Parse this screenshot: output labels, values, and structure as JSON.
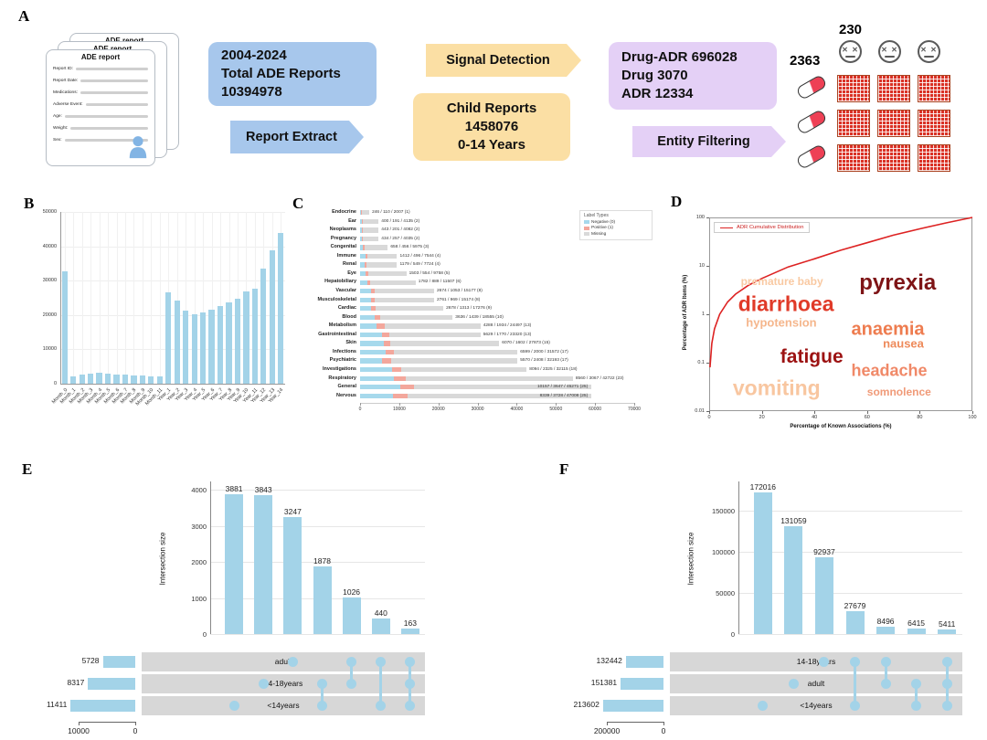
{
  "labels": {
    "A": "A",
    "B": "B",
    "C": "C",
    "D": "D",
    "E": "E",
    "F": "F"
  },
  "colors": {
    "bar_blue": "#a3d3e8",
    "neg_blue": "#a6d9ec",
    "pos_salmon": "#f3a79c",
    "missing_gray": "#d9d9d9",
    "box_blue": "#a7c7ec",
    "box_orange": "#fbdfa4",
    "box_purple": "#e4d0f6",
    "curve_red": "#dd2222",
    "matrix_red": "#da3125",
    "pill_red": "#ee4055",
    "band_gray": "#d7d7d7",
    "upset_blue": "#a3d3e8"
  },
  "flow": {
    "ade_title": "ADE report",
    "fields": [
      "Report ID:",
      "Report Date:",
      "Medications:",
      "Adverse Event:",
      "Age:",
      "Weight:",
      "Sex:"
    ],
    "total_box": [
      "2004-2024",
      "Total ADE Reports",
      "10394978"
    ],
    "report_extract": "Report Extract",
    "signal_detection": "Signal Detection",
    "child_box": [
      "Child Reports",
      "1458076",
      "0-14 Years"
    ],
    "entity_box": [
      "Drug-ADR 696028",
      "Drug 3070",
      "ADR 12334"
    ],
    "entity_filtering": "Entity Filtering",
    "drug_count": "2363",
    "adr_count": "230"
  },
  "chart_data": [
    {
      "id": "B",
      "type": "bar",
      "categories": [
        "Month_0",
        "Month_1",
        "Month_2",
        "Month_3",
        "Month_4",
        "Month_5",
        "Month_6",
        "Month_7",
        "Month_8",
        "Month_9",
        "Month_10",
        "Month_11",
        "Year_1",
        "Year_2",
        "Year_3",
        "Year_4",
        "Year_5",
        "Year_6",
        "Year_7",
        "Year_8",
        "Year_9",
        "Year_10",
        "Year_11",
        "Year_12",
        "Year_13",
        "Year_14"
      ],
      "values": [
        32700,
        2100,
        2600,
        3000,
        3100,
        2900,
        2800,
        2600,
        2500,
        2400,
        2200,
        2100,
        26500,
        24200,
        21300,
        20300,
        20800,
        21500,
        22600,
        23600,
        24800,
        27000,
        27800,
        33500,
        38800,
        44000
      ],
      "yticks": [
        0,
        10000,
        20000,
        30000,
        40000,
        50000
      ],
      "ylim": [
        0,
        50000
      ]
    },
    {
      "id": "C",
      "type": "stacked_barh",
      "legend_title": "Label Types",
      "legend": [
        {
          "label": "Negative (0)",
          "color": "#a6d9ec"
        },
        {
          "label": "Positive (1)",
          "color": "#f3a79c"
        },
        {
          "label": "Missing",
          "color": "#d9d9d9"
        }
      ],
      "xticks": [
        0,
        10000,
        20000,
        30000,
        40000,
        50000,
        60000,
        70000
      ],
      "xlim": [
        0,
        70000
      ],
      "rows": [
        {
          "label": "Endocrine",
          "neg": 246,
          "pos": 110,
          "missing": 2007,
          "annotation": "246 / 110 / 2007 (1)"
        },
        {
          "label": "Ear",
          "neg": 400,
          "pos": 191,
          "missing": 4135,
          "annotation": "400 / 191 / 4135 (2)"
        },
        {
          "label": "Neoplasms",
          "neg": 443,
          "pos": 201,
          "missing": 4082,
          "annotation": "443 / 201 / 4082 (2)"
        },
        {
          "label": "Pregnancy",
          "neg": 434,
          "pos": 257,
          "missing": 4035,
          "annotation": "434 / 257 / 4035 (2)"
        },
        {
          "label": "Congenital",
          "neg": 658,
          "pos": 456,
          "missing": 5975,
          "annotation": "658 / 456 / 5975 (3)"
        },
        {
          "label": "Immune",
          "neg": 1412,
          "pos": 496,
          "missing": 7544,
          "annotation": "1412 / 496 / 7544 (4)"
        },
        {
          "label": "Renal",
          "neg": 1179,
          "pos": 549,
          "missing": 7724,
          "annotation": "1179 / 549 / 7724 (4)"
        },
        {
          "label": "Eye",
          "neg": 1503,
          "pos": 554,
          "missing": 9758,
          "annotation": "1503 / 554 / 9758 (5)"
        },
        {
          "label": "Hepatobiliary",
          "neg": 1782,
          "pos": 889,
          "missing": 11507,
          "annotation": "1782 / 889 / 11507 (6)"
        },
        {
          "label": "Vascular",
          "neg": 2674,
          "pos": 1053,
          "missing": 15177,
          "annotation": "2674 / 1053 / 15177 (8)"
        },
        {
          "label": "Musculoskeletal",
          "neg": 2761,
          "pos": 969,
          "missing": 15174,
          "annotation": "2761 / 969 / 15174 (8)"
        },
        {
          "label": "Cardiac",
          "neg": 2678,
          "pos": 1313,
          "missing": 17276,
          "annotation": "2678 / 1313 / 17276 (9)"
        },
        {
          "label": "Blood",
          "neg": 3636,
          "pos": 1439,
          "missing": 18555,
          "annotation": "3636 / 1439 / 18555 (10)"
        },
        {
          "label": "Metabolism",
          "neg": 4288,
          "pos": 1934,
          "missing": 24497,
          "annotation": "4288 / 1934 / 24497 (13)"
        },
        {
          "label": "Gastrointestinal",
          "neg": 5629,
          "pos": 1770,
          "missing": 23320,
          "annotation": "5629 / 1770 / 23320 (13)"
        },
        {
          "label": "Skin",
          "neg": 6070,
          "pos": 1602,
          "missing": 27873,
          "annotation": "6070 / 1602 / 27873 (15)"
        },
        {
          "label": "Infections",
          "neg": 6599,
          "pos": 2000,
          "missing": 31572,
          "annotation": "6599 / 2000 / 31572 (17)"
        },
        {
          "label": "Psychiatric",
          "neg": 5570,
          "pos": 2408,
          "missing": 32193,
          "annotation": "5570 / 2408 / 32193 (17)"
        },
        {
          "label": "Investigations",
          "neg": 8094,
          "pos": 2325,
          "missing": 32115,
          "annotation": "8094 / 2325 / 32115 (18)"
        },
        {
          "label": "Respiratory",
          "neg": 8560,
          "pos": 3067,
          "missing": 42722,
          "annotation": "8560 / 3067 / 42722 (23)"
        },
        {
          "label": "General",
          "neg": 10157,
          "pos": 3647,
          "missing": 45271,
          "annotation": "10157 / 3647 / 45271 (25)"
        },
        {
          "label": "Nervous",
          "neg": 8339,
          "pos": 3728,
          "missing": 47008,
          "annotation": "8339 / 3728 / 47008 (25)"
        }
      ]
    },
    {
      "id": "D",
      "type": "line",
      "legend": "ADR Cumulative Distribution",
      "xlabel": "Percentage of Known Associations (%)",
      "ylabel": "Percentage of ADR Items (%)",
      "xticks": [
        0,
        20,
        40,
        60,
        80,
        100
      ],
      "yticks": [
        100,
        10,
        1,
        0.1,
        0.01
      ],
      "curve": [
        [
          0.3,
          0.08
        ],
        [
          1,
          0.25
        ],
        [
          2,
          0.5
        ],
        [
          4,
          1
        ],
        [
          7,
          1.8
        ],
        [
          10,
          2.6
        ],
        [
          15,
          4
        ],
        [
          20,
          5.5
        ],
        [
          30,
          9.5
        ],
        [
          40,
          14
        ],
        [
          50,
          21
        ],
        [
          60,
          30
        ],
        [
          70,
          43
        ],
        [
          80,
          58
        ],
        [
          90,
          77
        ],
        [
          100,
          100
        ]
      ],
      "words": [
        {
          "text": "premature baby",
          "size": 12,
          "color": "#f9c9a2",
          "x": 12,
          "y": 33
        },
        {
          "text": "pyrexia",
          "size": 24,
          "color": "#7e1416",
          "x": 57,
          "y": 34
        },
        {
          "text": "diarrhoea",
          "size": 23,
          "color": "#e03a28",
          "x": 11,
          "y": 45
        },
        {
          "text": "hypotension",
          "size": 13,
          "color": "#f5b68c",
          "x": 14,
          "y": 54
        },
        {
          "text": "anaemia",
          "size": 20,
          "color": "#ee7c4f",
          "x": 54,
          "y": 58
        },
        {
          "text": "nausea",
          "size": 13,
          "color": "#ee8a5a",
          "x": 66,
          "y": 65
        },
        {
          "text": "fatigue",
          "size": 21,
          "color": "#9c1212",
          "x": 27,
          "y": 72
        },
        {
          "text": "headache",
          "size": 18,
          "color": "#f08968",
          "x": 54,
          "y": 79
        },
        {
          "text": "vomiting",
          "size": 23,
          "color": "#f8c6a0",
          "x": 9,
          "y": 88
        },
        {
          "text": "somnolence",
          "size": 12,
          "color": "#f09a78",
          "x": 60,
          "y": 90
        }
      ]
    },
    {
      "id": "E",
      "type": "upset",
      "ylabel": "Intersection size",
      "yticks": [
        0,
        1000,
        2000,
        3000,
        4000
      ],
      "ymax": 4100,
      "bars": [
        3881,
        3843,
        3247,
        1878,
        1026,
        440,
        163
      ],
      "sets": [
        {
          "name": "adult",
          "size": 5728
        },
        {
          "name": "14-18years",
          "size": 8317
        },
        {
          "name": "<14years",
          "size": 11411
        }
      ],
      "set_axis_max": 10000,
      "set_axis_ticks": [
        {
          "label": "10000",
          "value": 10000
        },
        {
          "label": "0",
          "value": 0
        }
      ],
      "membership": [
        [
          2
        ],
        [
          1
        ],
        [
          0
        ],
        [
          1,
          2
        ],
        [
          0,
          1
        ],
        [
          0,
          2
        ],
        [
          0,
          1,
          2
        ]
      ]
    },
    {
      "id": "F",
      "type": "upset",
      "ylabel": "Intersection size",
      "yticks": [
        0,
        50000,
        100000,
        150000
      ],
      "ymax": 180000,
      "bars": [
        172016,
        131059,
        92937,
        27679,
        8496,
        6415,
        5411
      ],
      "sets": [
        {
          "name": "14-18years",
          "size": 132442
        },
        {
          "name": "adult",
          "size": 151381
        },
        {
          "name": "<14years",
          "size": 213602
        }
      ],
      "set_axis_max": 200000,
      "set_axis_ticks": [
        {
          "label": "200000",
          "value": 200000
        },
        {
          "label": "0",
          "value": 0
        }
      ],
      "membership": [
        [
          2
        ],
        [
          1
        ],
        [
          0
        ],
        [
          0,
          2
        ],
        [
          0,
          1
        ],
        [
          1,
          2
        ],
        [
          0,
          1,
          2
        ]
      ]
    }
  ]
}
